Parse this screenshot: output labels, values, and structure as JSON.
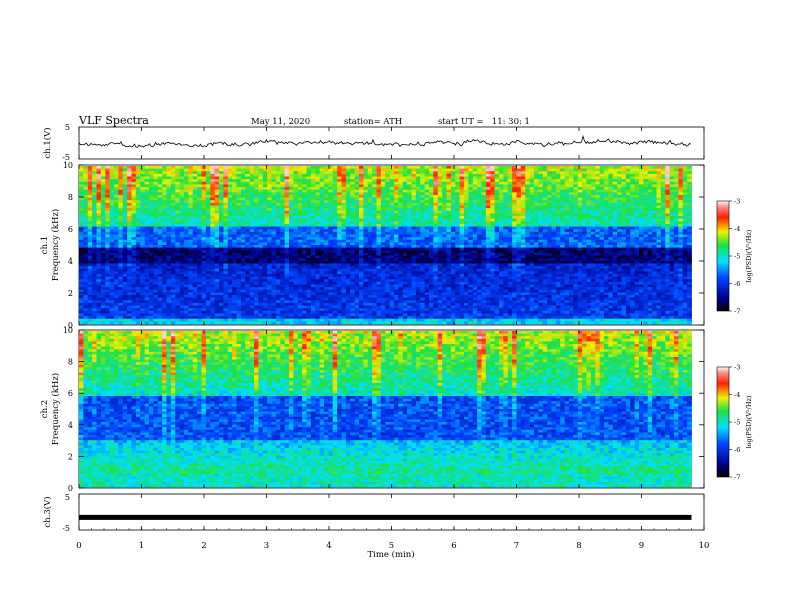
{
  "header": {
    "title": "VLF Spectra",
    "date": "May 11, 2020",
    "station": "station= ATH",
    "start": "start UT =   11: 30: 1"
  },
  "chart_data": [
    {
      "type": "line",
      "panel": "ch1-waveform",
      "ylabel": "ch.1(V)",
      "ylim": [
        -5,
        5
      ],
      "ytick_labels": [
        "5",
        "-5"
      ],
      "xlim": [
        0,
        10
      ],
      "series": [
        {
          "values_description_only": "",
          "x": [
            0,
            9.8
          ],
          "y": [
            0,
            0
          ]
        }
      ]
    },
    {
      "type": "heatmap",
      "panel": "ch1-spectrogram",
      "ylabel": "ch.1 Frequency (kHz)",
      "ylim": [
        0,
        10
      ],
      "ytick_labels": [
        "0",
        "2",
        "4",
        "6",
        "8",
        "10"
      ],
      "xlim": [
        0,
        9.8
      ],
      "colorbar": {
        "label": "log(PSD)(V²/Hz)",
        "range": [
          -7,
          -3
        ],
        "tick_labels": [
          "-3",
          "-4",
          "-5",
          "-6",
          "-7"
        ]
      }
    },
    {
      "type": "heatmap",
      "panel": "ch2-spectrogram",
      "ylabel": "ch.2 Frequency (kHz)",
      "ylim": [
        0,
        10
      ],
      "ytick_labels": [
        "0",
        "2",
        "4",
        "6",
        "8",
        "10"
      ],
      "xlim": [
        0,
        9.8
      ],
      "colorbar": {
        "label": "log(PSD)(V²/Hz)",
        "range": [
          -7,
          -3
        ],
        "tick_labels": [
          "-3",
          "-4",
          "-5",
          "-6",
          "-7"
        ]
      }
    },
    {
      "type": "line",
      "panel": "ch3-waveform",
      "ylabel": "ch.3(V)",
      "ylim": [
        -5,
        5
      ],
      "ytick_labels": [
        "5",
        "-5"
      ],
      "xlim": [
        0,
        10
      ],
      "series": [
        {
          "x": [
            0,
            9.8
          ],
          "y": [
            -1.5,
            -1.5
          ]
        }
      ]
    }
  ],
  "xaxis": {
    "label": "Time (min)",
    "range": [
      0,
      10
    ],
    "tick_labels": [
      "0",
      "1",
      "2",
      "3",
      "4",
      "5",
      "6",
      "7",
      "8",
      "9",
      "10"
    ]
  }
}
